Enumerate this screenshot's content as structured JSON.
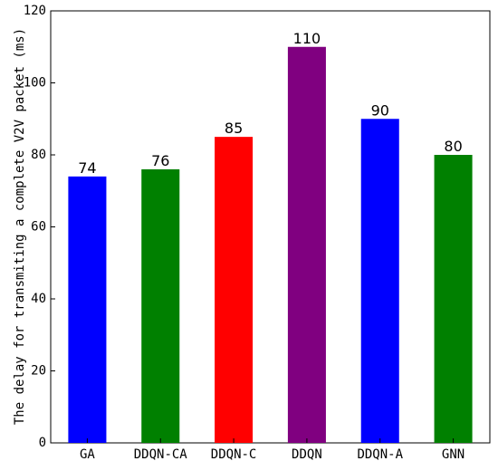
{
  "chart_data": {
    "type": "bar",
    "title": "",
    "xlabel": "",
    "ylabel": "The delay for transmiting a complete V2V packet (ms)",
    "categories": [
      "GA",
      "DDQN-CA",
      "DDQN-C",
      "DDQN",
      "DDQN-A",
      "GNN"
    ],
    "values": [
      74,
      76,
      85,
      110,
      90,
      80
    ],
    "value_labels": [
      "74",
      "76",
      "85",
      "110",
      "90",
      "80"
    ],
    "colors": [
      "#0000ff",
      "#008000",
      "#ff0000",
      "#800080",
      "#0000ff",
      "#008000"
    ],
    "ylim": [
      0,
      120
    ],
    "yticks": [
      0,
      20,
      40,
      60,
      80,
      100,
      120
    ],
    "grid": false,
    "legend": "none"
  }
}
